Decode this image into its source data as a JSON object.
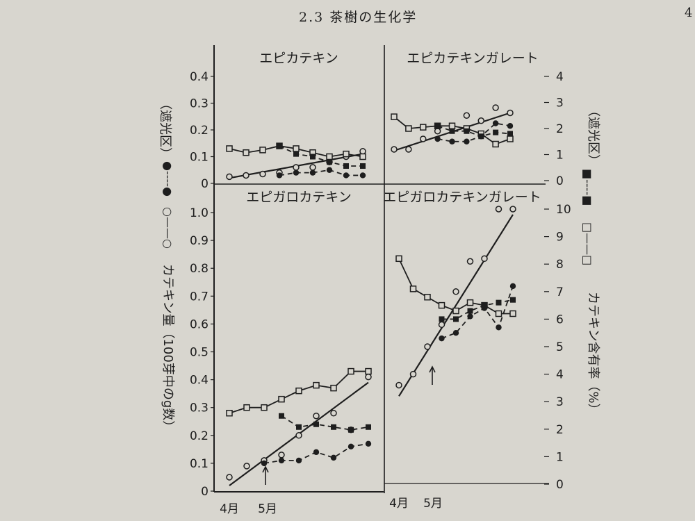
{
  "page": {
    "header": "2.3 茶樹の生化学",
    "page_number": "4"
  },
  "figure": {
    "left_ylabel": "カテキン量（100芽中のg数）",
    "right_ylabel": "カテキン含有率（%）",
    "legend_open_circle": "○——○",
    "legend_filled_circle": "●----●",
    "legend_open_square": "□——□",
    "legend_filled_square": "■----■",
    "shade_label_left": "（遮光区）",
    "shade_label_right": "（遮光区）",
    "x_ticks": [
      "4月",
      "5月"
    ]
  },
  "chart_data": [
    {
      "type": "line",
      "title": "エピカテキン",
      "y_axis": "left",
      "ylim": [
        0,
        0.4
      ],
      "yticks": [
        "0",
        "0.1",
        "0.2",
        "0.3",
        "0.4"
      ],
      "series": [
        {
          "marker": "open-circle",
          "line": "solid-fit",
          "x": [
            0,
            1,
            2,
            3,
            4,
            5,
            6,
            7,
            8
          ],
          "y": [
            0.025,
            0.03,
            0.035,
            0.04,
            0.06,
            0.06,
            0.08,
            0.1,
            0.12
          ],
          "fit": [
            0.02,
            0.11
          ]
        },
        {
          "marker": "filled-circle",
          "line": "dashed",
          "x": [
            3,
            4,
            5,
            6,
            7,
            8
          ],
          "y": [
            0.03,
            0.04,
            0.04,
            0.05,
            0.03,
            0.03
          ]
        },
        {
          "marker": "open-square",
          "line": "solid",
          "x": [
            0,
            1,
            2,
            3,
            4,
            5,
            6,
            7,
            8
          ],
          "y": [
            0.13,
            0.115,
            0.125,
            0.14,
            0.13,
            0.115,
            0.1,
            0.11,
            0.1
          ]
        },
        {
          "marker": "filled-square",
          "line": "dashed",
          "x": [
            3,
            4,
            5,
            6,
            7,
            8
          ],
          "y": [
            0.14,
            0.11,
            0.1,
            0.08,
            0.065,
            0.065
          ]
        }
      ]
    },
    {
      "type": "line",
      "title": "エピカテキンガレート",
      "y_axis": "right",
      "ylim": [
        0,
        4
      ],
      "yticks": [
        "0",
        "1",
        "2",
        "3",
        "4"
      ],
      "series": [
        {
          "marker": "open-circle",
          "line": "solid-fit",
          "x": [
            0,
            1,
            2,
            3,
            4,
            5,
            6,
            7,
            8
          ],
          "y": [
            1.2,
            1.2,
            1.6,
            1.9,
            2.1,
            2.5,
            2.3,
            2.8,
            2.6
          ],
          "fit": [
            1.15,
            2.6
          ]
        },
        {
          "marker": "filled-circle",
          "line": "dashed",
          "x": [
            3,
            4,
            5,
            6,
            7,
            8
          ],
          "y": [
            1.6,
            1.5,
            1.5,
            1.7,
            2.2,
            2.1
          ]
        },
        {
          "marker": "open-square",
          "line": "solid",
          "x": [
            0,
            1,
            2,
            3,
            4,
            5,
            6,
            7,
            8
          ],
          "y": [
            2.45,
            2.0,
            2.05,
            2.1,
            2.1,
            2.0,
            1.8,
            1.4,
            1.6
          ]
        },
        {
          "marker": "filled-square",
          "line": "dashed",
          "x": [
            3,
            4,
            5,
            6,
            7,
            8
          ],
          "y": [
            2.1,
            1.9,
            1.9,
            1.7,
            1.85,
            1.8
          ]
        }
      ]
    },
    {
      "type": "line",
      "title": "エピガロカテキン",
      "y_axis": "left",
      "ylim": [
        0,
        1.0
      ],
      "yticks": [
        "0",
        "0.1",
        "0.2",
        "0.3",
        "0.4",
        "0.5",
        "0.6",
        "0.7",
        "0.8",
        "0.9",
        "1.0"
      ],
      "series": [
        {
          "marker": "open-circle",
          "line": "solid-fit",
          "x": [
            0,
            1,
            2,
            3,
            4,
            5,
            6,
            7,
            8
          ],
          "y": [
            0.05,
            0.09,
            0.11,
            0.13,
            0.2,
            0.27,
            0.28,
            0.22,
            0.41
          ],
          "fit": [
            0.02,
            0.39
          ]
        },
        {
          "marker": "filled-circle",
          "line": "dashed",
          "x": [
            2,
            3,
            4,
            5,
            6,
            7,
            8
          ],
          "y": [
            0.1,
            0.11,
            0.11,
            0.14,
            0.12,
            0.16,
            0.17
          ]
        },
        {
          "marker": "open-square",
          "line": "solid",
          "x": [
            0,
            1,
            2,
            3,
            4,
            5,
            6,
            7,
            8
          ],
          "y": [
            0.28,
            0.3,
            0.3,
            0.33,
            0.36,
            0.38,
            0.37,
            0.43,
            0.43
          ]
        },
        {
          "marker": "filled-square",
          "line": "dashed",
          "x": [
            3,
            4,
            5,
            6,
            7,
            8
          ],
          "y": [
            0.27,
            0.23,
            0.24,
            0.23,
            0.22,
            0.23
          ]
        }
      ]
    },
    {
      "type": "line",
      "title": "エピガロカテキンガレート",
      "y_axis": "right",
      "ylim": [
        0,
        10
      ],
      "yticks": [
        "0",
        "1",
        "2",
        "3",
        "4",
        "5",
        "6",
        "7",
        "8",
        "9",
        "10"
      ],
      "series": [
        {
          "marker": "open-circle",
          "line": "solid-fit",
          "x": [
            0,
            1,
            2,
            3,
            4,
            5,
            6,
            7,
            8
          ],
          "y": [
            3.6,
            4.0,
            5.0,
            5.8,
            7.0,
            8.1,
            8.2,
            10.0,
            10.0
          ],
          "fit": [
            3.2,
            9.8
          ]
        },
        {
          "marker": "filled-circle",
          "line": "dashed",
          "x": [
            3,
            4,
            5,
            6,
            7,
            8
          ],
          "y": [
            5.3,
            5.5,
            6.1,
            6.4,
            5.7,
            7.2
          ]
        },
        {
          "marker": "open-square",
          "line": "solid",
          "x": [
            0,
            1,
            2,
            3,
            4,
            5,
            6,
            7,
            8
          ],
          "y": [
            8.2,
            7.1,
            6.8,
            6.5,
            6.3,
            6.6,
            6.5,
            6.2,
            6.2
          ]
        },
        {
          "marker": "filled-square",
          "line": "dashed",
          "x": [
            3,
            4,
            5,
            6,
            7,
            8
          ],
          "y": [
            6.0,
            6.0,
            6.3,
            6.5,
            6.6,
            6.7
          ]
        }
      ]
    }
  ]
}
